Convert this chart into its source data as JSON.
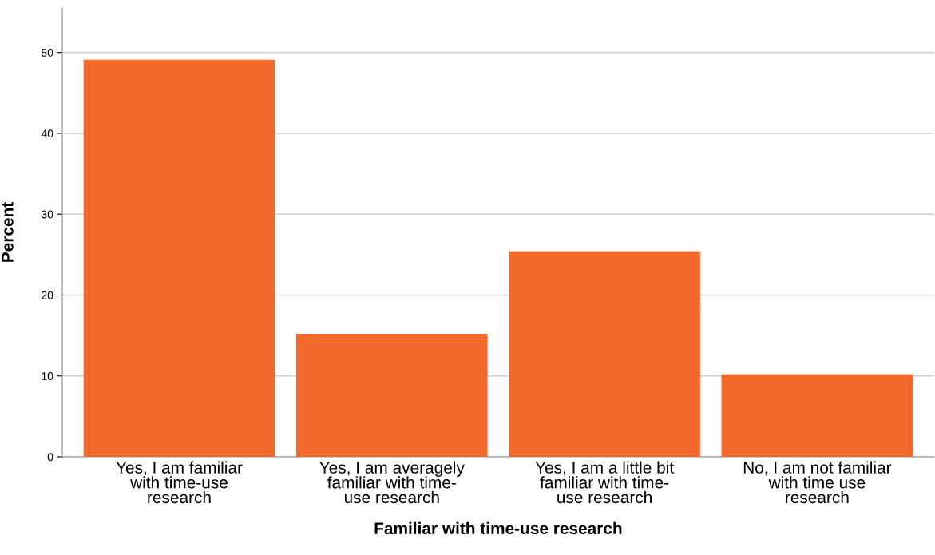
{
  "chart_data": {
    "type": "bar",
    "xlabel": "Familiar with time-use research",
    "ylabel": "Percent",
    "categories": [
      "Yes, I am familiar\nwith time-use\nresearch",
      "Yes, I am averagely\nfamiliar with time-\nuse research",
      "Yes, I am a little bit\nfamiliar with time-\nuse research",
      "No, I am not familiar\nwith time use\nresearch"
    ],
    "values": [
      49.1,
      15.2,
      25.4,
      10.2
    ],
    "color": "#f2692d",
    "ylim": [
      0,
      55.5
    ],
    "yticks": [
      0,
      10,
      20,
      30,
      40,
      50
    ],
    "grid": "y",
    "legend": false
  }
}
